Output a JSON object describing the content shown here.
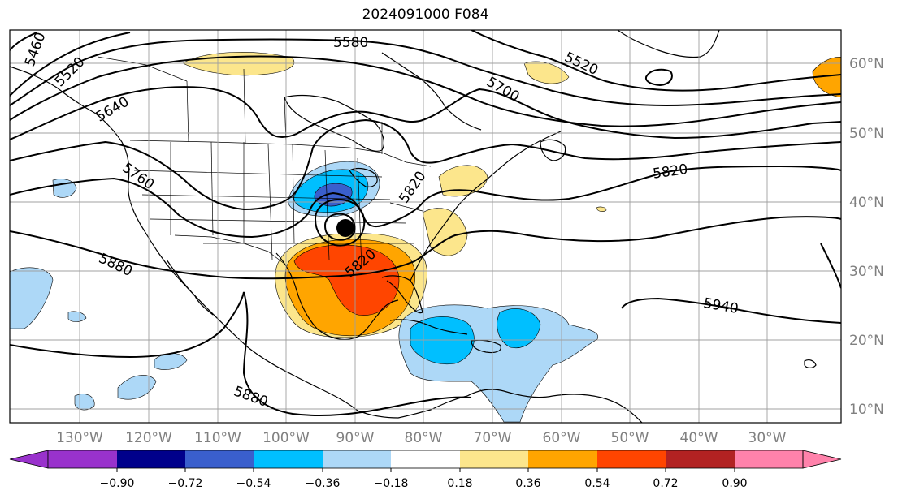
{
  "title": "2024091000 F084",
  "lat_labels": [
    "60°N",
    "50°N",
    "40°N",
    "30°N",
    "20°N",
    "10°N"
  ],
  "lon_labels": [
    "130°W",
    "120°W",
    "110°W",
    "100°W",
    "90°W",
    "80°W",
    "70°W",
    "60°W",
    "50°W",
    "40°W",
    "30°W"
  ],
  "contour_labels": [
    "5460",
    "5520",
    "5580",
    "5640",
    "5700",
    "5760",
    "5820",
    "5820",
    "5820",
    "5880",
    "5880",
    "5940",
    "5520"
  ],
  "colorbar": {
    "ticks": [
      "−0.90",
      "−0.72",
      "−0.54",
      "−0.36",
      "−0.18",
      "0.18",
      "0.36",
      "0.54",
      "0.72",
      "0.90"
    ],
    "colors": [
      "#9932cc",
      "#00008b",
      "#3a5fcd",
      "#00bfff",
      "#add8f7",
      "#ffffff",
      "#fce68c",
      "#ffa500",
      "#ff4500",
      "#b22222",
      "#ff82ab"
    ]
  },
  "colors": {
    "land": "#ffffff",
    "grid": "#a0a0a0",
    "axis_label": "#808080",
    "low_center": "#000000"
  }
}
